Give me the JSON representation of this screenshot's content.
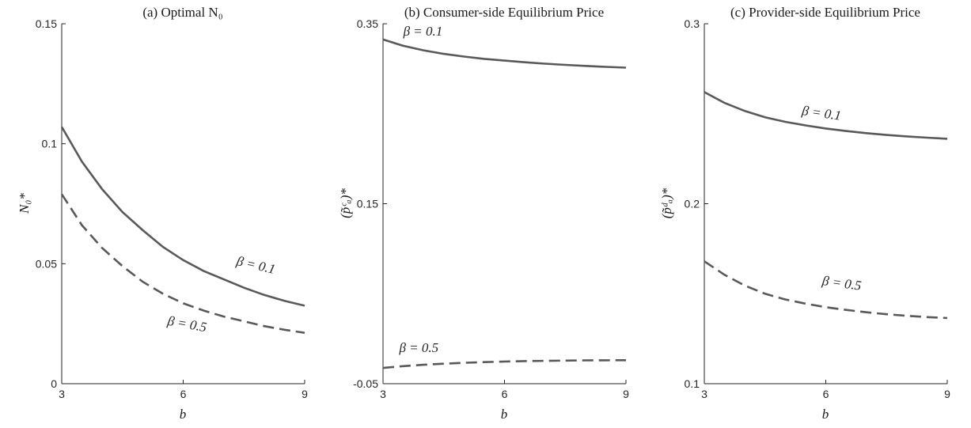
{
  "chart_data": [
    {
      "type": "line",
      "title": "(a) Optimal N₀",
      "xlabel": "b",
      "ylabel": "N₀*",
      "xlim": [
        3,
        9
      ],
      "ylim": [
        0,
        0.15
      ],
      "xticks": [
        3,
        6,
        9
      ],
      "xtick_labels": [
        "3",
        "6",
        "9"
      ],
      "yticks": [
        0,
        0.05,
        0.1,
        0.15
      ],
      "ytick_labels": [
        "0",
        "0.05",
        "0.1",
        "0.15"
      ],
      "series": [
        {
          "label": "β = 0.1",
          "style": "solid",
          "x": [
            3,
            3.5,
            4,
            4.5,
            5,
            5.5,
            6,
            6.5,
            7,
            7.5,
            8,
            8.5,
            9
          ],
          "y": [
            0.107,
            0.0925,
            0.081,
            0.0715,
            0.064,
            0.057,
            0.0515,
            0.047,
            0.0435,
            0.04,
            0.037,
            0.0345,
            0.0325
          ],
          "annotation_at": [
            7.3,
            0.0495
          ],
          "annotation_angle": 13
        },
        {
          "label": "β = 0.5",
          "style": "dashed",
          "x": [
            3,
            3.5,
            4,
            4.5,
            5,
            5.5,
            6,
            6.5,
            7,
            7.5,
            8,
            8.5,
            9
          ],
          "y": [
            0.079,
            0.066,
            0.0565,
            0.049,
            0.0425,
            0.0375,
            0.0335,
            0.0305,
            0.028,
            0.026,
            0.024,
            0.0225,
            0.0212
          ],
          "annotation_at": [
            5.6,
            0.0245
          ],
          "annotation_angle": 10
        }
      ]
    },
    {
      "type": "line",
      "title": "(b) Consumer-side Equilibrium Price",
      "xlabel": "b",
      "ylabel": "(p̃ᶜₐ)*",
      "xlim": [
        3,
        9
      ],
      "ylim": [
        -0.05,
        0.35
      ],
      "xticks": [
        3,
        6,
        9
      ],
      "xtick_labels": [
        "3",
        "6",
        "9"
      ],
      "yticks": [
        -0.05,
        0.15,
        0.35
      ],
      "ytick_labels": [
        "-0.05",
        "0.15",
        "0.35"
      ],
      "series": [
        {
          "label": "β = 0.1",
          "style": "solid",
          "x": [
            3,
            3.5,
            4,
            4.5,
            5,
            5.5,
            6,
            6.5,
            7,
            7.5,
            8,
            8.5,
            9
          ],
          "y": [
            0.3325,
            0.3255,
            0.3205,
            0.3165,
            0.3135,
            0.311,
            0.309,
            0.3072,
            0.3056,
            0.3043,
            0.3031,
            0.3021,
            0.3012
          ],
          "annotation_at": [
            3.5,
            0.337
          ],
          "annotation_angle": 0
        },
        {
          "label": "β = 0.5",
          "style": "dashed",
          "x": [
            3,
            3.5,
            4,
            4.5,
            5,
            5.5,
            6,
            6.5,
            7,
            7.5,
            8,
            8.5,
            9
          ],
          "y": [
            -0.0325,
            -0.0305,
            -0.029,
            -0.0278,
            -0.0268,
            -0.026,
            -0.0254,
            -0.0249,
            -0.0246,
            -0.0243,
            -0.0241,
            -0.024,
            -0.0239
          ],
          "annotation_at": [
            3.4,
            -0.015
          ],
          "annotation_angle": 0
        }
      ]
    },
    {
      "type": "line",
      "title": "(c) Provider-side Equilibrium Price",
      "xlabel": "b",
      "ylabel": "(p̃ᵈₐ)*",
      "xlim": [
        3,
        9
      ],
      "ylim": [
        0.1,
        0.3
      ],
      "xticks": [
        3,
        6,
        9
      ],
      "xtick_labels": [
        "3",
        "6",
        "9"
      ],
      "yticks": [
        0.1,
        0.2,
        0.3
      ],
      "ytick_labels": [
        "0.1",
        "0.2",
        "0.3"
      ],
      "series": [
        {
          "label": "β = 0.1",
          "style": "solid",
          "x": [
            3,
            3.5,
            4,
            4.5,
            5,
            5.5,
            6,
            6.5,
            7,
            7.5,
            8,
            8.5,
            9
          ],
          "y": [
            0.262,
            0.256,
            0.2515,
            0.248,
            0.2455,
            0.2435,
            0.2418,
            0.2404,
            0.2392,
            0.2382,
            0.2374,
            0.2367,
            0.2361
          ],
          "annotation_at": [
            5.4,
            0.2495
          ],
          "annotation_angle": 8
        },
        {
          "label": "β = 0.5",
          "style": "dashed",
          "x": [
            3,
            3.5,
            4,
            4.5,
            5,
            5.5,
            6,
            6.5,
            7,
            7.5,
            8,
            8.5,
            9
          ],
          "y": [
            0.168,
            0.1605,
            0.1545,
            0.15,
            0.1468,
            0.1445,
            0.1425,
            0.141,
            0.1397,
            0.1386,
            0.1377,
            0.137,
            0.1365
          ],
          "annotation_at": [
            5.9,
            0.155
          ],
          "annotation_angle": 8
        }
      ]
    }
  ],
  "colors": {
    "line": "#595959",
    "axis": "#262626",
    "text": "#1a1a1a"
  }
}
